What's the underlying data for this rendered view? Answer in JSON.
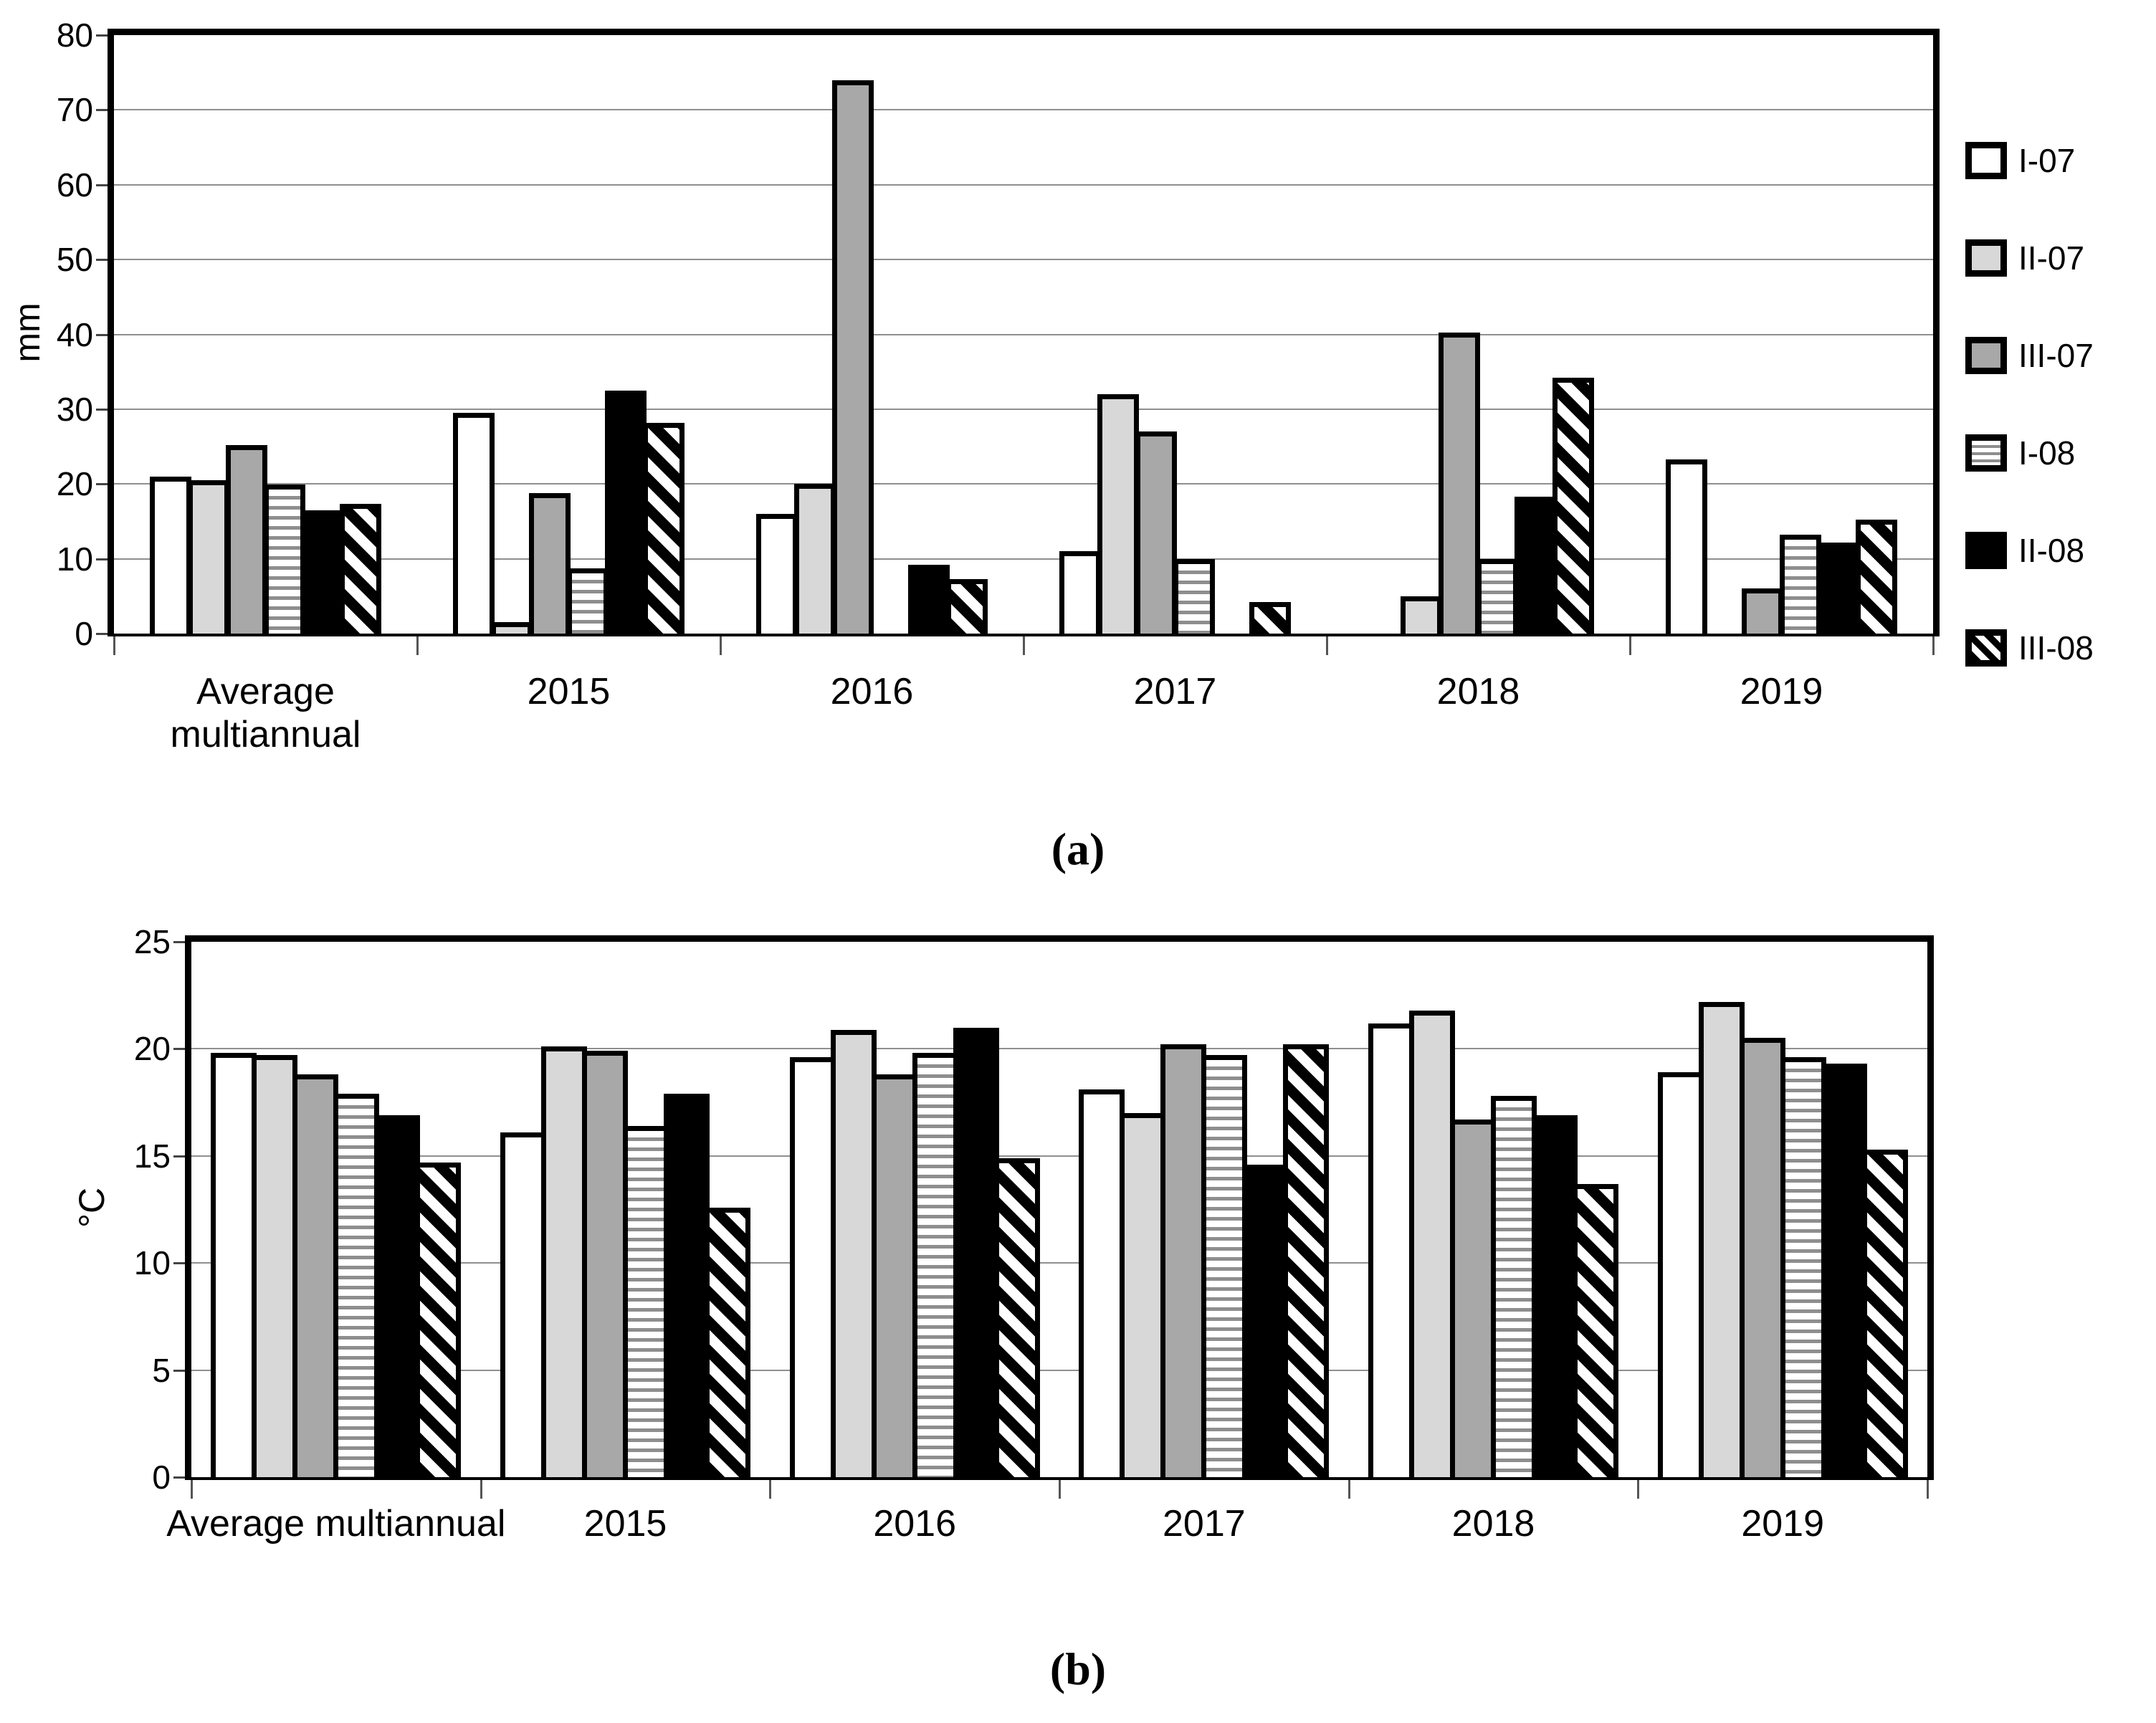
{
  "figure": {
    "caption_a": "(a)",
    "caption_b": "(b)"
  },
  "chart_data": [
    {
      "type": "bar",
      "panel": "a",
      "ylabel": "mm",
      "ylim": [
        0,
        80
      ],
      "ytick_step": 10,
      "yticks": [
        0,
        10,
        20,
        30,
        40,
        50,
        60,
        70,
        80
      ],
      "grid": true,
      "legend_position": "right",
      "categories": [
        "Average multiannual",
        "2015",
        "2016",
        "2017",
        "2018",
        "2019"
      ],
      "xtick_labels": [
        "Average\nmultiannual",
        "2015",
        "2016",
        "2017",
        "2018",
        "2019"
      ],
      "series": [
        {
          "name": "I-07",
          "pattern": "white",
          "values": [
            21.0,
            29.5,
            16.0,
            11.0,
            0,
            23.3
          ]
        },
        {
          "name": "II-07",
          "pattern": "lightgray",
          "values": [
            20.5,
            1.5,
            20.0,
            32.0,
            5.0,
            0
          ]
        },
        {
          "name": "III-07",
          "pattern": "gray",
          "values": [
            25.2,
            18.8,
            74.0,
            27.0,
            40.2,
            6.0
          ]
        },
        {
          "name": "I-08",
          "pattern": "hstripes",
          "values": [
            19.9,
            8.7,
            0,
            10.0,
            10.0,
            13.2
          ]
        },
        {
          "name": "II-08",
          "pattern": "black",
          "values": [
            16.5,
            32.5,
            9.2,
            0,
            18.3,
            12.2
          ]
        },
        {
          "name": "III-08",
          "pattern": "diagonal",
          "values": [
            17.3,
            28.2,
            7.3,
            4.2,
            34.2,
            15.2
          ]
        }
      ]
    },
    {
      "type": "bar",
      "panel": "b",
      "ylabel": "°C",
      "ylim": [
        0,
        25
      ],
      "ytick_step": 5,
      "yticks": [
        0,
        5,
        10,
        15,
        20,
        25
      ],
      "grid": true,
      "legend_position": "none",
      "categories": [
        "Average multiannual",
        "2015",
        "2016",
        "2017",
        "2018",
        "2019"
      ],
      "xtick_labels": [
        "Average multiannual",
        "2015",
        "2016",
        "2017",
        "2018",
        "2019"
      ],
      "series": [
        {
          "name": "I-07",
          "pattern": "white",
          "values": [
            19.8,
            16.1,
            19.6,
            18.1,
            21.2,
            18.9
          ]
        },
        {
          "name": "II-07",
          "pattern": "lightgray",
          "values": [
            19.7,
            20.1,
            20.9,
            17.0,
            21.8,
            22.2
          ]
        },
        {
          "name": "III-07",
          "pattern": "gray",
          "values": [
            18.8,
            19.9,
            18.8,
            20.2,
            16.7,
            20.5
          ]
        },
        {
          "name": "I-08",
          "pattern": "hstripes",
          "values": [
            17.9,
            16.4,
            19.8,
            19.7,
            17.8,
            19.6
          ]
        },
        {
          "name": "II-08",
          "pattern": "black",
          "values": [
            16.9,
            17.9,
            21.0,
            14.6,
            16.9,
            19.3
          ]
        },
        {
          "name": "III-08",
          "pattern": "diagonal",
          "values": [
            14.7,
            12.6,
            14.9,
            20.2,
            13.7,
            15.3
          ]
        }
      ]
    }
  ]
}
